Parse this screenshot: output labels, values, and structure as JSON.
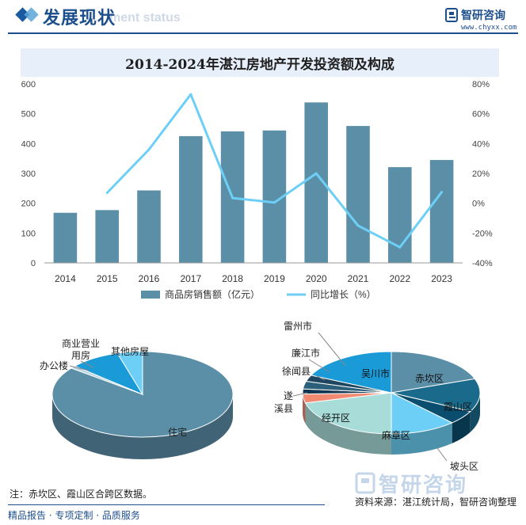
{
  "header": {
    "title": "发展现状",
    "subtitle": "ment status",
    "logo_name": "智研咨询",
    "logo_url": "www.chyxx.com"
  },
  "chart_data": [
    {
      "type": "bar",
      "title": "2014-2024年湛江房地产开发投资额及构成",
      "categories": [
        "2014",
        "2015",
        "2016",
        "2017",
        "2018",
        "2019",
        "2020",
        "2021",
        "2022",
        "2023"
      ],
      "series": [
        {
          "name": "商品房销售额（亿元）",
          "type": "bar",
          "axis": "left",
          "color": "#5b8fa8",
          "values": [
            168,
            177,
            243,
            425,
            441,
            444,
            538,
            459,
            321,
            345
          ]
        },
        {
          "name": "同比增长（%）",
          "type": "line",
          "axis": "right",
          "color": "#6dcff6",
          "values": [
            null,
            7,
            36,
            73,
            3.5,
            0.5,
            20,
            -15,
            -29.5,
            7.5
          ]
        }
      ],
      "y_left": {
        "range": [
          0,
          600
        ],
        "ticks": [
          "0",
          "100",
          "200",
          "300",
          "400",
          "500",
          "600"
        ]
      },
      "y_right": {
        "range": [
          -40,
          80
        ],
        "ticks": [
          "-40%",
          "-20%",
          "0%",
          "20%",
          "40%",
          "60%",
          "80%"
        ]
      },
      "legend": {
        "placement": "bottom",
        "items": [
          "商品房销售额（亿元）",
          "同比增长（%）"
        ]
      },
      "grid": false
    },
    {
      "type": "pie",
      "labels": [
        "住宅",
        "办公楼",
        "商业营业用房",
        "其他房屋"
      ],
      "values": [
        85.5,
        1.0,
        9.0,
        4.5
      ],
      "colors": [
        "#5b8fa8",
        "#b8d4e3",
        "#1a9ad6",
        "#6dcff6"
      ],
      "label_text": {
        "residential": "住宅",
        "office": "办公楼",
        "commercial_1": "商业营业",
        "commercial_2": "用房",
        "other": "其他房屋"
      }
    },
    {
      "type": "pie",
      "labels": [
        "赤坎区",
        "霞山区",
        "坡头区",
        "麻章区",
        "经开区",
        "遂溪县",
        "徐闻县",
        "廉江市",
        "雷州市",
        "吴川市"
      ],
      "values": [
        19.5,
        13.0,
        5.5,
        12.0,
        21.0,
        3.5,
        2.0,
        3.0,
        2.5,
        18.0
      ],
      "colors": [
        "#5b8fa8",
        "#1a6a8c",
        "#0a4d6e",
        "#6dcff6",
        "#a8dcd9",
        "#f08a72",
        "#0f3550",
        "#2c5f7a",
        "#1e4660",
        "#1a9ad6"
      ],
      "label_text": {
        "chikan": "赤坎区",
        "xiashan": "霞山区",
        "potou": "坡头区",
        "mazhang": "麻章区",
        "jingkai": "经开区",
        "suixi_1": "遂",
        "suixi_2": "溪县",
        "xuwen": "徐闻县",
        "lianjiang": "廉江市",
        "leizhou": "雷州市",
        "wuchuan": "吴川市"
      }
    }
  ],
  "footer": {
    "note": "注：赤坎区、霞山区合跨区数据。",
    "source": "资料来源：湛江统计局，智研咨询整理",
    "tagline": "精品报告 · 专项定制 · 品质服务",
    "watermark": "智研咨询"
  }
}
